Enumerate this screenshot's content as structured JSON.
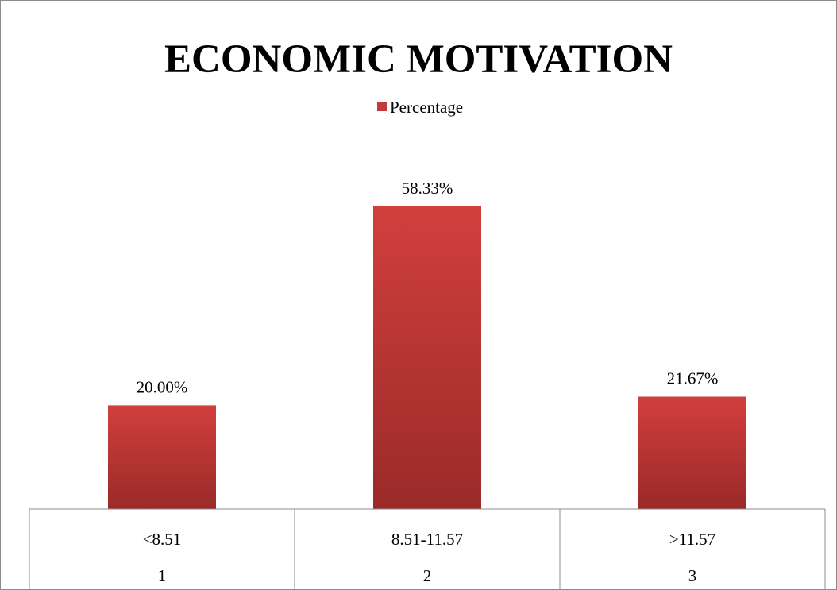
{
  "chart_data": {
    "type": "bar",
    "title": "ECONOMIC MOTIVATION",
    "categories": [
      "<8.51",
      "8.51-11.57",
      ">11.57"
    ],
    "category_groups": [
      "1",
      "2",
      "3"
    ],
    "series": [
      {
        "name": "Percentage",
        "values": [
          20.0,
          58.33,
          21.67
        ],
        "labels": [
          "20.00%",
          "58.33%",
          "21.67%"
        ],
        "color": "#c0393b"
      }
    ],
    "xlabel": "",
    "ylabel": "",
    "ylim": [
      0,
      70
    ],
    "grid": false,
    "legend_position": "top"
  }
}
